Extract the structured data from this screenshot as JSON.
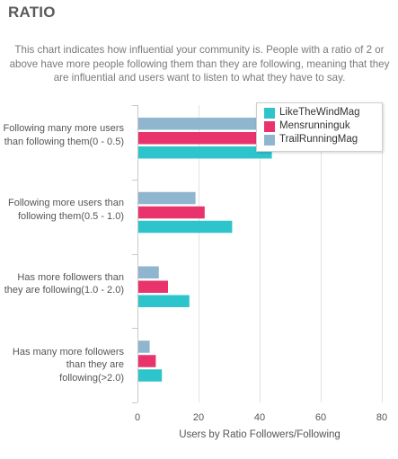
{
  "header": {
    "title": "RATIO",
    "description": "This chart indicates how influential your community is. People with a ratio of 2 or above have more people following them than they are following, meaning that they are influential and users want to listen to what they have to say."
  },
  "chart_data": {
    "type": "bar",
    "orientation": "horizontal",
    "categories": [
      "Following many more users than following them(0 - 0.5)",
      "Following more users than following them(0.5 - 1.0)",
      "Has more followers than they are following(1.0 - 2.0)",
      "Has many more followers than they are following(>2.0)"
    ],
    "series": [
      {
        "name": "LikeTheWindMag",
        "color": "#2ec4cc",
        "values": [
          44,
          31,
          17,
          8
        ]
      },
      {
        "name": "Mensrunninguk",
        "color": "#e8336d",
        "values": [
          42,
          22,
          10,
          6
        ]
      },
      {
        "name": "TrailRunningMag",
        "color": "#8fb6ce",
        "values": [
          41,
          19,
          7,
          4
        ]
      }
    ],
    "xlabel": "Users by Ratio Followers/Following",
    "xlim": [
      0,
      80
    ],
    "xticks": [
      0,
      20,
      40,
      60,
      80
    ],
    "grid": true,
    "legend_position": "top-right"
  }
}
